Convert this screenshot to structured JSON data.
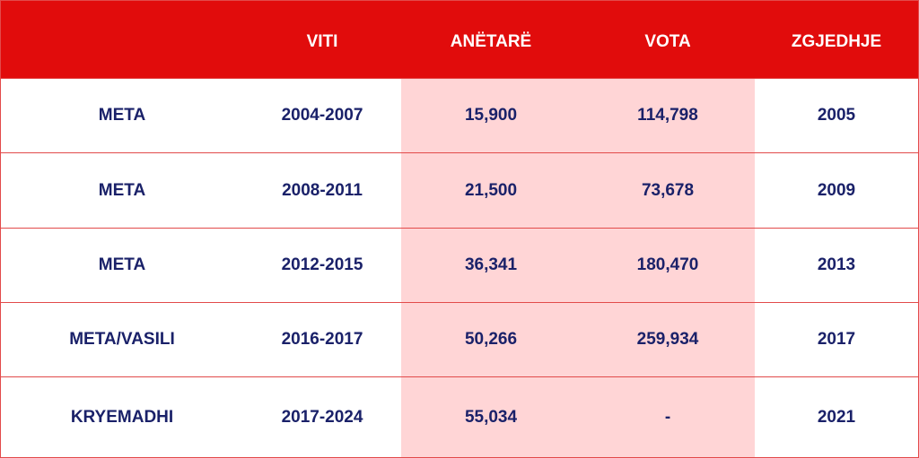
{
  "chart_data": {
    "type": "table",
    "columns": [
      "",
      "VITI",
      "ANËTARË",
      "VOTA",
      "ZGJEDHJE"
    ],
    "rows": [
      [
        "META",
        "2004-2007",
        "15,900",
        "114,798",
        "2005"
      ],
      [
        "META",
        "2008-2011",
        "21,500",
        "73,678",
        "2009"
      ],
      [
        "META",
        "2012-2015",
        "36,341",
        "180,470",
        "2013"
      ],
      [
        "META/VASILI",
        "2016-2017",
        "50,266",
        "259,934",
        "2017"
      ],
      [
        "KRYEMADHI",
        "2017-2024",
        "55,034",
        "-",
        "2021"
      ]
    ]
  },
  "colors": {
    "header_bg": "#e10c0c",
    "header_text": "#ffffff",
    "highlight_bg": "#ffd5d6",
    "cell_text": "#1a2169",
    "border": "#e24a4a"
  }
}
